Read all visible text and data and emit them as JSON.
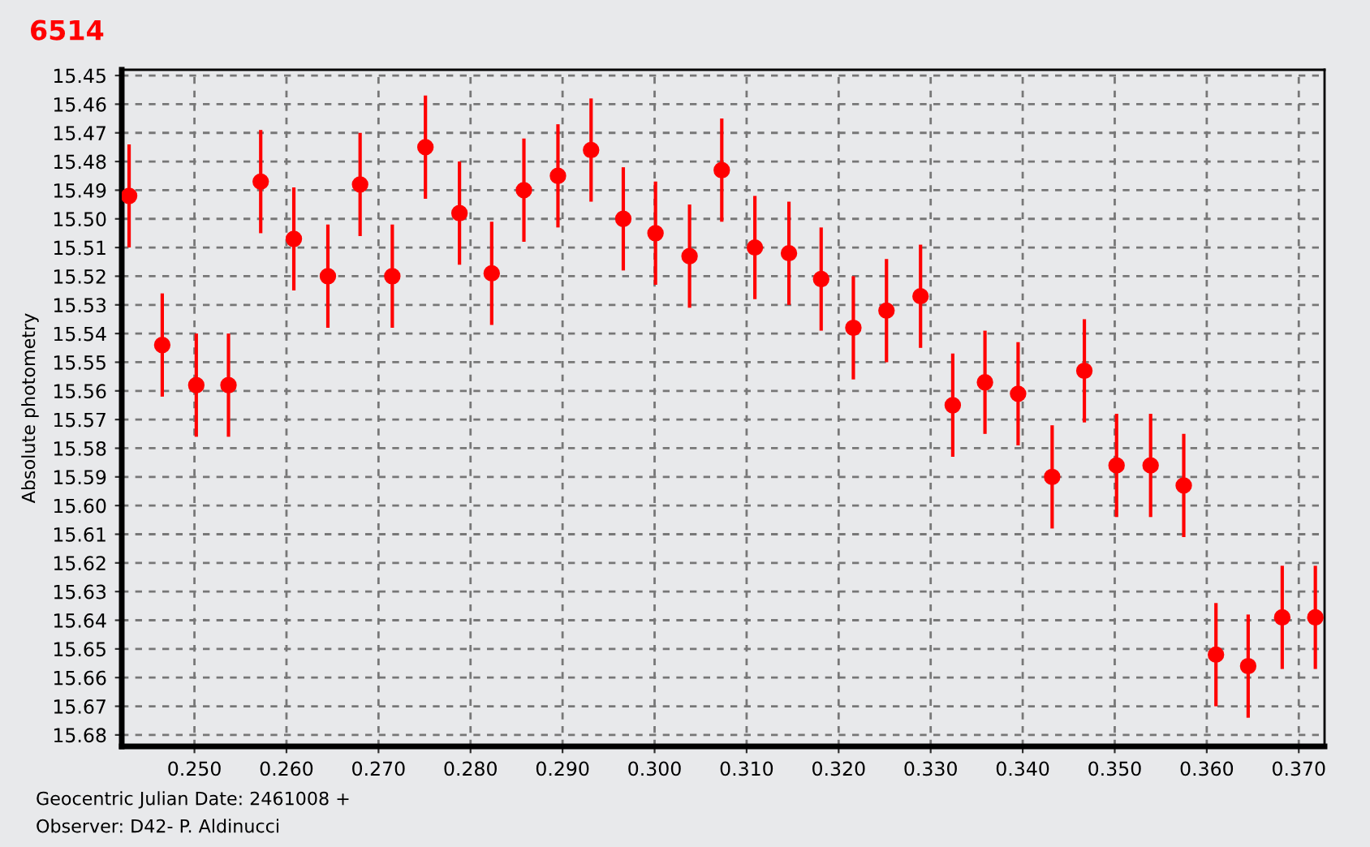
{
  "chart_data": {
    "type": "scatter",
    "title": "6514",
    "ylabel": "Absolute photometry",
    "annotations": [
      "Geocentric Julian Date: 2461008 +",
      "Observer: D42- P. Aldinucci"
    ],
    "x": [
      0.2429,
      0.2465,
      0.2502,
      0.2537,
      0.2572,
      0.2608,
      0.2645,
      0.268,
      0.2715,
      0.2751,
      0.2788,
      0.2823,
      0.2858,
      0.2895,
      0.2931,
      0.2966,
      0.3001,
      0.3038,
      0.3073,
      0.3109,
      0.3146,
      0.3181,
      0.3216,
      0.3252,
      0.3289,
      0.3324,
      0.3359,
      0.3395,
      0.3432,
      0.3467,
      0.3502,
      0.3539,
      0.3575,
      0.361,
      0.3645,
      0.3682,
      0.3718
    ],
    "series": [
      {
        "color": "#ff0000",
        "values": [
          15.492,
          15.544,
          15.558,
          15.558,
          15.487,
          15.507,
          15.52,
          15.488,
          15.52,
          15.475,
          15.498,
          15.519,
          15.49,
          15.485,
          15.476,
          15.5,
          15.505,
          15.513,
          15.483,
          15.51,
          15.512,
          15.521,
          15.538,
          15.532,
          15.527,
          15.565,
          15.557,
          15.561,
          15.59,
          15.553,
          15.586,
          15.586,
          15.593,
          15.652,
          15.656,
          15.639,
          15.639
        ],
        "errors": [
          0.018,
          0.018,
          0.018,
          0.018,
          0.018,
          0.018,
          0.018,
          0.018,
          0.018,
          0.018,
          0.018,
          0.018,
          0.018,
          0.018,
          0.018,
          0.018,
          0.018,
          0.018,
          0.018,
          0.018,
          0.018,
          0.018,
          0.018,
          0.018,
          0.018,
          0.018,
          0.018,
          0.018,
          0.018,
          0.018,
          0.018,
          0.018,
          0.018,
          0.018,
          0.018,
          0.018,
          0.018
        ]
      }
    ],
    "xlim": [
      0.2421,
      0.3728
    ],
    "ylim": [
      15.684,
      15.448
    ],
    "xticks": [
      {
        "value": 0.25,
        "label": "0.250"
      },
      {
        "value": 0.26,
        "label": "0.260"
      },
      {
        "value": 0.27,
        "label": "0.270"
      },
      {
        "value": 0.28,
        "label": "0.280"
      },
      {
        "value": 0.29,
        "label": "0.290"
      },
      {
        "value": 0.3,
        "label": "0.300"
      },
      {
        "value": 0.31,
        "label": "0.310"
      },
      {
        "value": 0.32,
        "label": "0.320"
      },
      {
        "value": 0.33,
        "label": "0.330"
      },
      {
        "value": 0.34,
        "label": "0.340"
      },
      {
        "value": 0.35,
        "label": "0.350"
      },
      {
        "value": 0.36,
        "label": "0.360"
      },
      {
        "value": 0.37,
        "label": "0.370"
      }
    ],
    "yticks": [
      {
        "value": 15.45,
        "label": "15.45"
      },
      {
        "value": 15.46,
        "label": "15.46"
      },
      {
        "value": 15.47,
        "label": "15.47"
      },
      {
        "value": 15.48,
        "label": "15.48"
      },
      {
        "value": 15.49,
        "label": "15.49"
      },
      {
        "value": 15.5,
        "label": "15.50"
      },
      {
        "value": 15.51,
        "label": "15.51"
      },
      {
        "value": 15.52,
        "label": "15.52"
      },
      {
        "value": 15.53,
        "label": "15.53"
      },
      {
        "value": 15.54,
        "label": "15.54"
      },
      {
        "value": 15.55,
        "label": "15.55"
      },
      {
        "value": 15.56,
        "label": "15.56"
      },
      {
        "value": 15.57,
        "label": "15.57"
      },
      {
        "value": 15.58,
        "label": "15.58"
      },
      {
        "value": 15.59,
        "label": "15.59"
      },
      {
        "value": 15.6,
        "label": "15.60"
      },
      {
        "value": 15.61,
        "label": "15.61"
      },
      {
        "value": 15.62,
        "label": "15.62"
      },
      {
        "value": 15.63,
        "label": "15.63"
      },
      {
        "value": 15.64,
        "label": "15.64"
      },
      {
        "value": 15.65,
        "label": "15.65"
      },
      {
        "value": 15.66,
        "label": "15.66"
      },
      {
        "value": 15.67,
        "label": "15.67"
      },
      {
        "value": 15.68,
        "label": "15.68"
      }
    ],
    "grid": true,
    "marker": "circle",
    "legend": false
  }
}
